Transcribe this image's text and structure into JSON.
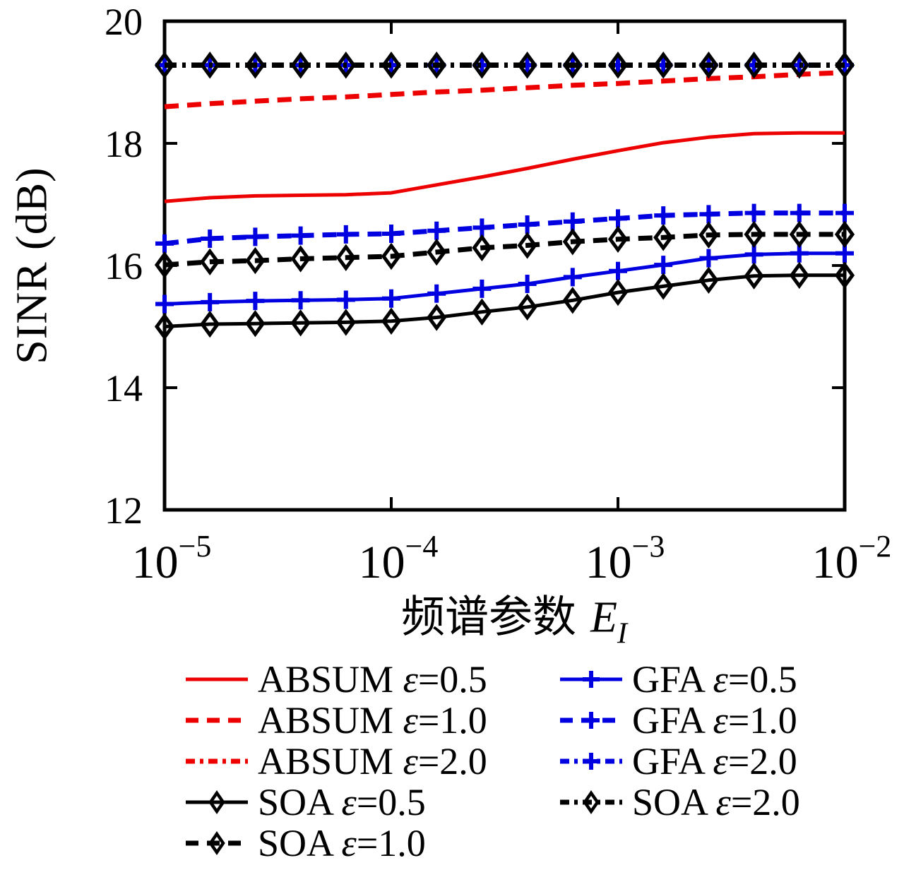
{
  "figure": {
    "ylabel": "SINR (dB)",
    "xlabel_cn": "频谱参数",
    "xlabel_var": "E",
    "xlabel_sub": "I"
  },
  "chart_data": {
    "type": "line",
    "title": "",
    "xlabel": "频谱参数 E_I",
    "ylabel": "SINR (dB)",
    "x_scale": "log",
    "xlim_exponents": [
      -5,
      -2
    ],
    "ylim": [
      12,
      20
    ],
    "grid": false,
    "y_ticks": [
      20,
      18,
      16,
      14,
      12
    ],
    "x_ticks": [
      {
        "mantissa": "10",
        "exponent": "−5",
        "exp_value": -5
      },
      {
        "mantissa": "10",
        "exponent": "−4",
        "exp_value": -4
      },
      {
        "mantissa": "10",
        "exponent": "−3",
        "exp_value": -3
      },
      {
        "mantissa": "10",
        "exponent": "−2",
        "exp_value": -2
      }
    ],
    "x_exponents": [
      -5,
      -4.8,
      -4.6,
      -4.4,
      -4.2,
      -4,
      -3.8,
      -3.6,
      -3.4,
      -3.2,
      -3,
      -2.8,
      -2.6,
      -2.4,
      -2.2,
      -2
    ],
    "colors": {
      "red": "#ed0000",
      "blue": "#0000e0",
      "black": "#000000"
    },
    "series": [
      {
        "name": "ABSUM ε=0.5",
        "color": "red",
        "line": "solid",
        "marker": "none",
        "values": [
          17.05,
          17.11,
          17.14,
          17.15,
          17.16,
          17.19,
          17.32,
          17.45,
          17.59,
          17.74,
          17.88,
          18.01,
          18.1,
          18.16,
          18.17,
          18.17
        ]
      },
      {
        "name": "ABSUM ε=1.0",
        "color": "red",
        "line": "dash",
        "marker": "none",
        "values": [
          18.6,
          18.65,
          18.69,
          18.73,
          18.76,
          18.8,
          18.84,
          18.87,
          18.91,
          18.95,
          18.98,
          19.02,
          19.06,
          19.09,
          19.13,
          19.16
        ]
      },
      {
        "name": "ABSUM ε=2.0",
        "color": "red",
        "line": "dashdot",
        "marker": "none",
        "values": [
          19.28,
          19.28,
          19.28,
          19.28,
          19.28,
          19.28,
          19.28,
          19.28,
          19.28,
          19.28,
          19.28,
          19.28,
          19.28,
          19.28,
          19.28,
          19.28
        ]
      },
      {
        "name": "GFA ε=0.5",
        "color": "blue",
        "line": "solid",
        "marker": "plus",
        "values": [
          15.37,
          15.4,
          15.42,
          15.43,
          15.44,
          15.46,
          15.54,
          15.62,
          15.7,
          15.81,
          15.91,
          16.01,
          16.12,
          16.18,
          16.2,
          16.2
        ]
      },
      {
        "name": "GFA ε=1.0",
        "color": "blue",
        "line": "dash",
        "marker": "plus",
        "values": [
          16.36,
          16.44,
          16.47,
          16.49,
          16.51,
          16.52,
          16.57,
          16.62,
          16.67,
          16.72,
          16.77,
          16.82,
          16.84,
          16.86,
          16.86,
          16.86
        ]
      },
      {
        "name": "GFA ε=2.0",
        "color": "blue",
        "line": "dashdot",
        "marker": "plus",
        "values": [
          19.28,
          19.28,
          19.28,
          19.28,
          19.28,
          19.28,
          19.28,
          19.28,
          19.28,
          19.28,
          19.28,
          19.28,
          19.28,
          19.28,
          19.28,
          19.28
        ]
      },
      {
        "name": "SOA ε=0.5",
        "color": "black",
        "line": "solid",
        "marker": "diamond",
        "values": [
          15.0,
          15.04,
          15.05,
          15.06,
          15.07,
          15.09,
          15.15,
          15.24,
          15.32,
          15.43,
          15.56,
          15.66,
          15.76,
          15.83,
          15.84,
          15.84
        ]
      },
      {
        "name": "SOA ε=1.0",
        "color": "black",
        "line": "dash",
        "marker": "diamond",
        "values": [
          16.01,
          16.06,
          16.08,
          16.11,
          16.13,
          16.15,
          16.22,
          16.29,
          16.33,
          16.39,
          16.43,
          16.46,
          16.5,
          16.51,
          16.51,
          16.51
        ]
      },
      {
        "name": "SOA ε=2.0",
        "color": "black",
        "line": "dashdot",
        "marker": "diamond",
        "values": [
          19.28,
          19.28,
          19.28,
          19.28,
          19.28,
          19.28,
          19.28,
          19.28,
          19.28,
          19.28,
          19.28,
          19.28,
          19.28,
          19.28,
          19.28,
          19.28
        ]
      }
    ],
    "legend": {
      "position": "below-axes",
      "columns": [
        {
          "items": [
            0,
            1,
            2,
            6,
            7
          ]
        },
        {
          "items": [
            3,
            4,
            5,
            8
          ]
        }
      ]
    }
  }
}
